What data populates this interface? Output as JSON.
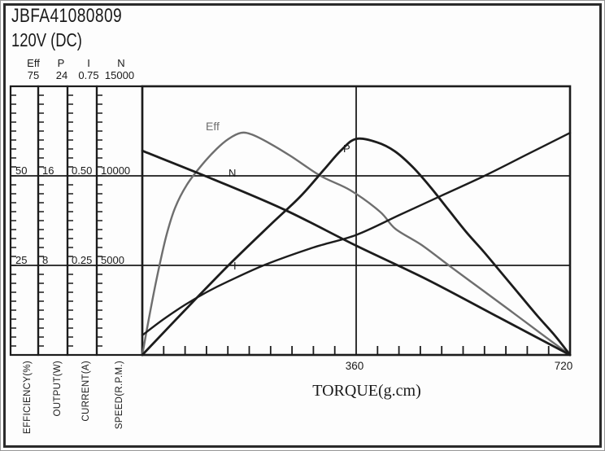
{
  "window": {
    "title": "JBFA41080809",
    "voltage": "120V (DC)"
  },
  "colors": {
    "line": "#1c1c1c",
    "eff": "#6e6e6e"
  },
  "scale_columns": [
    {
      "name": "Eff",
      "max": "75",
      "mid": "50",
      "low": "25",
      "axis_label": "EFFICIENCY(%)"
    },
    {
      "name": "P",
      "max": "24",
      "mid": "16",
      "low": "8",
      "axis_label": "OUTPUT(W)"
    },
    {
      "name": "I",
      "max": "0.75",
      "mid": "0.50",
      "low": "0.25",
      "axis_label": "CURRENT(A)"
    },
    {
      "name": "N",
      "max": "15000",
      "mid": "10000",
      "low": "5000",
      "axis_label": "SPEED(R.P.M.)"
    }
  ],
  "x_axis": {
    "label": "TORQUE(g.cm)",
    "mid_tick": "360",
    "end_tick": "720"
  },
  "curve_labels": {
    "eff": "Eff",
    "n": "N",
    "p": "P",
    "i": "I"
  },
  "chart_data": {
    "type": "line",
    "title": "JBFA41080809 120V (DC) motor performance curves",
    "xlabel": "TORQUE(g.cm)",
    "x_range": [
      0,
      720
    ],
    "x_major_ticks": [
      360,
      720
    ],
    "x_minor_step": 36,
    "grid": "horizontal lines at 1/3 and 2/3 of scale; vertical line at torque 360",
    "legend_position": "labels on curves",
    "y_axes": [
      {
        "name": "Eff",
        "label": "EFFICIENCY(%)",
        "range": [
          0,
          75
        ],
        "ticks": [
          25,
          50,
          75
        ]
      },
      {
        "name": "P",
        "label": "OUTPUT(W)",
        "range": [
          0,
          24
        ],
        "ticks": [
          8,
          16,
          24
        ]
      },
      {
        "name": "I",
        "label": "CURRENT(A)",
        "range": [
          0,
          0.75
        ],
        "ticks": [
          0.25,
          0.5,
          0.75
        ]
      },
      {
        "name": "N",
        "label": "SPEED(R.P.M.)",
        "range": [
          0,
          15000
        ],
        "ticks": [
          5000,
          10000,
          15000
        ]
      }
    ],
    "series": [
      {
        "name": "Eff",
        "axis": "Eff",
        "max": 75,
        "color_key": "eff",
        "width": 2.4,
        "points": [
          [
            0,
            0
          ],
          [
            12,
            11
          ],
          [
            25,
            22
          ],
          [
            40,
            33
          ],
          [
            55,
            41
          ],
          [
            75,
            47.5
          ],
          [
            100,
            53
          ],
          [
            125,
            57.5
          ],
          [
            145,
            60.3
          ],
          [
            166,
            62
          ],
          [
            185,
            61.5
          ],
          [
            215,
            59
          ],
          [
            250,
            55.5
          ],
          [
            300,
            50
          ],
          [
            350,
            46
          ],
          [
            400,
            40
          ],
          [
            426,
            35.2
          ],
          [
            470,
            30.7
          ],
          [
            520,
            24.5
          ],
          [
            570,
            18.4
          ],
          [
            620,
            12.3
          ],
          [
            670,
            6.1
          ],
          [
            720,
            0
          ]
        ]
      },
      {
        "name": "I",
        "axis": "I",
        "max": 0.75,
        "color_key": "line",
        "width": 2.4,
        "points": [
          [
            0,
            0.055
          ],
          [
            36,
            0.1
          ],
          [
            72,
            0.14
          ],
          [
            108,
            0.175
          ],
          [
            144,
            0.205
          ],
          [
            207,
            0.252
          ],
          [
            288,
            0.3
          ],
          [
            360,
            0.335
          ],
          [
            432,
            0.39
          ],
          [
            504,
            0.445
          ],
          [
            576,
            0.5
          ],
          [
            648,
            0.56
          ],
          [
            720,
            0.62
          ]
        ]
      },
      {
        "name": "P",
        "axis": "P",
        "max": 24,
        "color_key": "line",
        "width": 2.8,
        "points": [
          [
            0,
            0
          ],
          [
            70,
            3.9
          ],
          [
            145,
            8
          ],
          [
            215,
            11.6
          ],
          [
            265,
            14.1
          ],
          [
            305,
            16.5
          ],
          [
            335,
            18.3
          ],
          [
            360,
            19.3
          ],
          [
            395,
            19.0
          ],
          [
            425,
            18.2
          ],
          [
            455,
            16.8
          ],
          [
            485,
            15.0
          ],
          [
            515,
            13.0
          ],
          [
            545,
            11.0
          ],
          [
            575,
            9.2
          ],
          [
            605,
            7.3
          ],
          [
            635,
            5.4
          ],
          [
            665,
            3.5
          ],
          [
            695,
            1.7
          ],
          [
            720,
            0
          ]
        ]
      },
      {
        "name": "N",
        "axis": "N",
        "max": 15000,
        "color_key": "line",
        "width": 2.8,
        "points": [
          [
            0,
            11400
          ],
          [
            120,
            9800
          ],
          [
            240,
            8100
          ],
          [
            360,
            6100
          ],
          [
            480,
            4200
          ],
          [
            600,
            2100
          ],
          [
            720,
            0
          ]
        ]
      }
    ]
  }
}
